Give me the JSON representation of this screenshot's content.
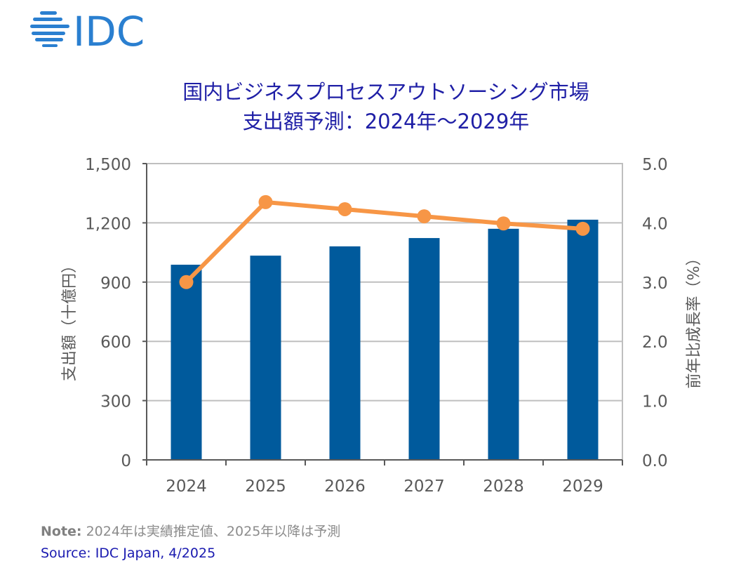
{
  "logo": {
    "text": "IDC",
    "color": "#2a7fd0"
  },
  "title": {
    "line1": "国内ビジネスプロセスアウトソーシング市場",
    "line2": "支出額予測：2024年～2029年"
  },
  "footer": {
    "note_label": "Note:",
    "note_text": " 2024年は実績推定値、2025年以降は予測",
    "source": "Source: IDC Japan, 4/2025"
  },
  "colors": {
    "bar": "#005a9c",
    "line": "#f79646",
    "grid": "#bfbfbf",
    "axis": "#595959",
    "title": "#1f1fa6"
  },
  "chart_data": {
    "type": "bar",
    "title": "国内ビジネスプロセスアウトソーシング市場 支出額予測：2024年～2029年",
    "categories": [
      "2024",
      "2025",
      "2026",
      "2027",
      "2028",
      "2029"
    ],
    "series": [
      {
        "name": "支出額（十億円）",
        "type": "bar",
        "axis": "left",
        "values": [
          988,
          1034,
          1081,
          1123,
          1170,
          1216
        ]
      },
      {
        "name": "前年比成長率（%）",
        "type": "line",
        "axis": "right",
        "values": [
          3.0,
          4.35,
          4.23,
          4.11,
          3.99,
          3.9
        ]
      }
    ],
    "ylabel": "支出額（十億円）",
    "ylabel_right": "前年比成長率（%）",
    "ylim": [
      0,
      1500
    ],
    "ylim_right": [
      0,
      5
    ],
    "yticks": [
      0,
      300,
      600,
      900,
      1200,
      1500
    ],
    "ytick_labels": [
      "0",
      "300",
      "600",
      "900",
      "1,200",
      "1,500"
    ],
    "yticks_right": [
      0,
      1,
      2,
      3,
      4,
      5
    ],
    "ytick_labels_right": [
      "0.0",
      "1.0",
      "2.0",
      "3.0",
      "4.0",
      "5.0"
    ],
    "grid": true,
    "legend": "none"
  }
}
